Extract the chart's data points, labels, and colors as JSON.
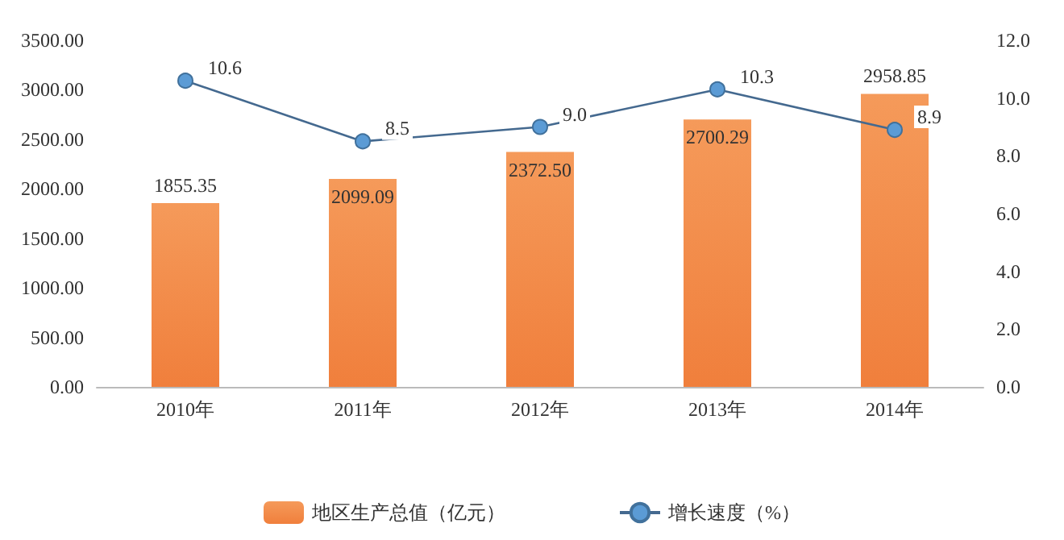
{
  "chart_data": {
    "type": "bar",
    "categories": [
      "2010年",
      "2011年",
      "2012年",
      "2013年",
      "2014年"
    ],
    "series": [
      {
        "name": "地区生产总值（亿元）",
        "color": "#f07f3c",
        "values": [
          1855.35,
          2099.09,
          2372.5,
          2700.29,
          2958.85
        ],
        "value_labels": [
          "1855.35",
          "2099.09",
          "2372.50",
          "2700.29",
          "2958.85"
        ]
      },
      {
        "name": "增长速度（%）",
        "type": "line",
        "axis": "y2",
        "color": "#5b9bd5",
        "values": [
          10.6,
          8.5,
          9.0,
          10.3,
          8.9
        ],
        "value_labels": [
          "10.6",
          "8.5",
          "9.0",
          "10.3",
          "8.9"
        ]
      }
    ],
    "ylim": [
      0,
      3500
    ],
    "yticks": [
      {
        "value": 0,
        "label": "0.00"
      },
      {
        "value": 500,
        "label": "500.00"
      },
      {
        "value": 1000,
        "label": "1000.00"
      },
      {
        "value": 1500,
        "label": "1500.00"
      },
      {
        "value": 2000,
        "label": "2000.00"
      },
      {
        "value": 2500,
        "label": "2500.00"
      },
      {
        "value": 3000,
        "label": "3000.00"
      },
      {
        "value": 3500,
        "label": "3500.00"
      }
    ],
    "y2lim": [
      0,
      12
    ],
    "y2ticks": [
      {
        "value": 0,
        "label": "0.0"
      },
      {
        "value": 2,
        "label": "2.0"
      },
      {
        "value": 4,
        "label": "4.0"
      },
      {
        "value": 6,
        "label": "6.0"
      },
      {
        "value": 8,
        "label": "8.0"
      },
      {
        "value": 10,
        "label": "10.0"
      },
      {
        "value": 12,
        "label": "12.0"
      }
    ],
    "marker": "circle",
    "legend": "bottom",
    "grid": false
  }
}
